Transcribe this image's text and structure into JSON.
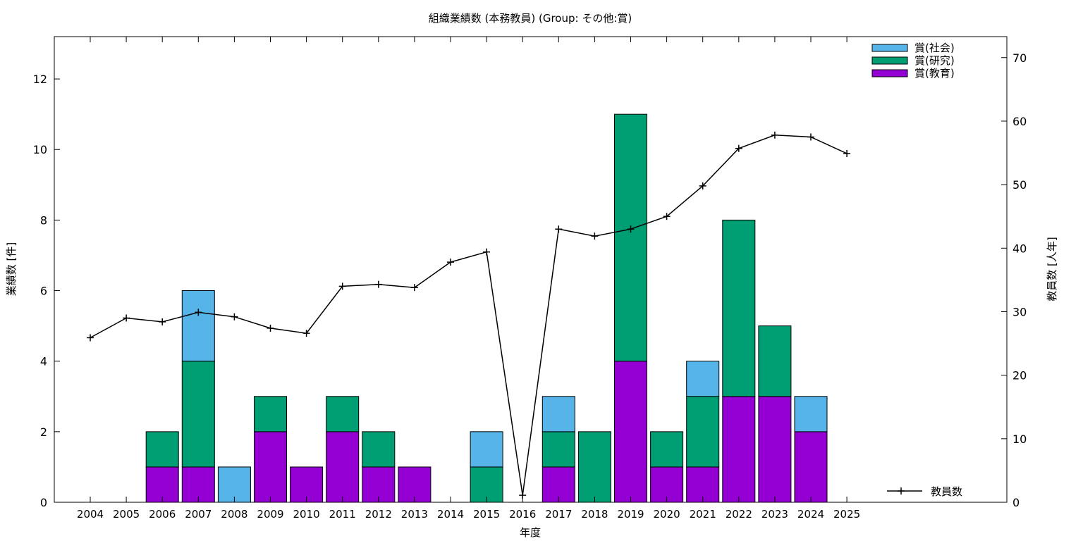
{
  "chart_data": {
    "type": "bar",
    "stacked": true,
    "title": "組織業績数 (本務教員) (Group: その他:賞)",
    "xlabel": "年度",
    "ylabel": "業績数 [件]",
    "y2label": "教員数 [人年]",
    "categories": [
      "2004",
      "2005",
      "2006",
      "2007",
      "2008",
      "2009",
      "2010",
      "2011",
      "2012",
      "2013",
      "2014",
      "2015",
      "2016",
      "2017",
      "2018",
      "2019",
      "2020",
      "2021",
      "2022",
      "2023",
      "2024",
      "2025"
    ],
    "ylim": [
      0,
      13.2
    ],
    "y2lim": [
      0,
      73.3
    ],
    "yticks": [
      0,
      2,
      4,
      6,
      8,
      10,
      12
    ],
    "y2ticks": [
      0,
      10,
      20,
      30,
      40,
      50,
      60,
      70
    ],
    "grid": false,
    "legend_position": "top-right",
    "series": [
      {
        "name": "賞(教育)",
        "color": "#9400d3",
        "values": [
          0,
          0,
          1,
          1,
          0,
          2,
          1,
          2,
          1,
          1,
          0,
          0,
          0,
          1,
          0,
          4,
          1,
          1,
          3,
          3,
          2,
          0
        ]
      },
      {
        "name": "賞(研究)",
        "color": "#009e73",
        "values": [
          0,
          0,
          1,
          3,
          0,
          1,
          0,
          1,
          1,
          0,
          0,
          1,
          0,
          1,
          2,
          7,
          1,
          2,
          5,
          2,
          0,
          0
        ]
      },
      {
        "name": "賞(社会)",
        "color": "#56b4e9",
        "values": [
          0,
          0,
          0,
          2,
          1,
          0,
          0,
          0,
          0,
          0,
          0,
          1,
          0,
          1,
          0,
          0,
          0,
          1,
          0,
          0,
          1,
          0
        ]
      }
    ],
    "legend_order": [
      "賞(社会)",
      "賞(研究)",
      "賞(教育)"
    ],
    "line_series": {
      "name": "教員数",
      "axis": "y2",
      "color": "#000000",
      "values": [
        25.9,
        29.0,
        28.4,
        29.9,
        29.2,
        27.4,
        26.6,
        34.0,
        34.3,
        33.8,
        37.8,
        39.4,
        1.1,
        43.0,
        41.9,
        43.0,
        45.0,
        49.8,
        55.7,
        57.8,
        57.5,
        54.9
      ]
    }
  }
}
